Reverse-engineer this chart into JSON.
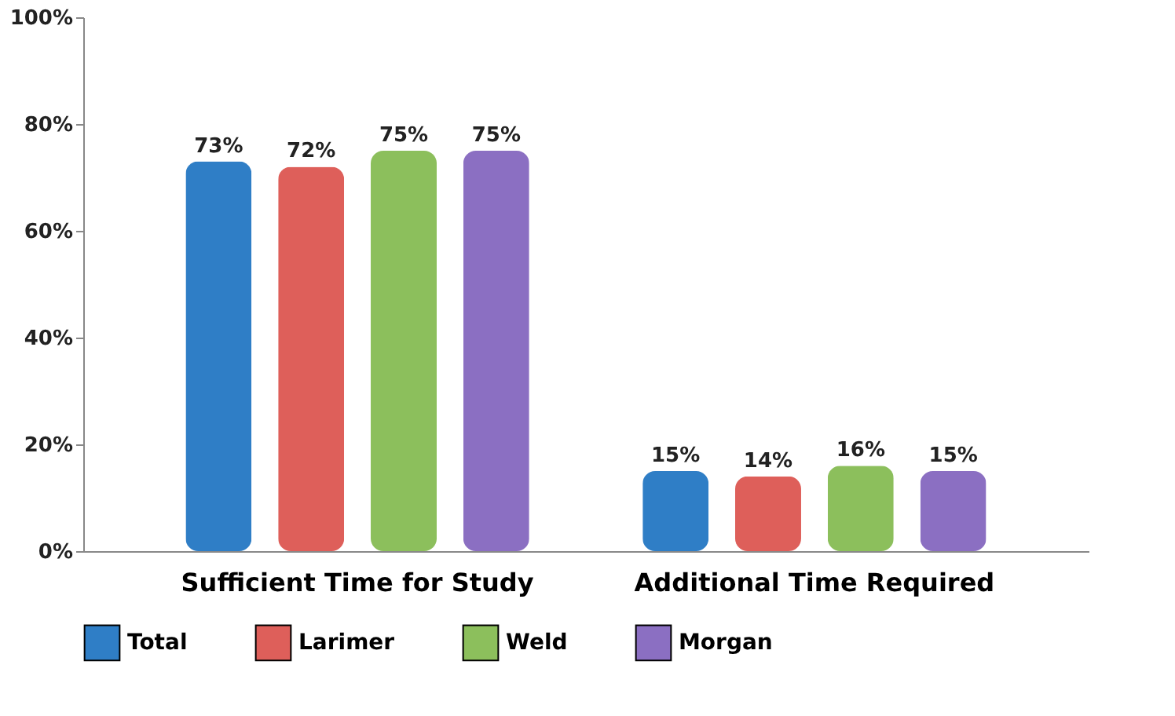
{
  "chart_data": {
    "type": "bar",
    "categories": [
      "Sufficient Time for Study",
      "Additional Time Required"
    ],
    "series": [
      {
        "name": "Total",
        "color": "#2f7ec6",
        "values": [
          73,
          15
        ],
        "value_labels": [
          "73%",
          "15%"
        ]
      },
      {
        "name": "Larimer",
        "color": "#de5f5a",
        "values": [
          72,
          14
        ],
        "value_labels": [
          "72%",
          "14%"
        ]
      },
      {
        "name": "Weld",
        "color": "#8cbf5c",
        "values": [
          75,
          16
        ],
        "value_labels": [
          "75%",
          "16%"
        ]
      },
      {
        "name": "Morgan",
        "color": "#8b6fc2",
        "values": [
          75,
          15
        ],
        "value_labels": [
          "75%",
          "15%"
        ]
      }
    ],
    "ylim": [
      0,
      100
    ],
    "yticks": [
      {
        "value": 0,
        "label": "0%"
      },
      {
        "value": 20,
        "label": "20%"
      },
      {
        "value": 40,
        "label": "40%"
      },
      {
        "value": 60,
        "label": "60%"
      },
      {
        "value": 80,
        "label": "80%"
      },
      {
        "value": 100,
        "label": "100%"
      }
    ],
    "grid": false,
    "legend": "bottom"
  }
}
